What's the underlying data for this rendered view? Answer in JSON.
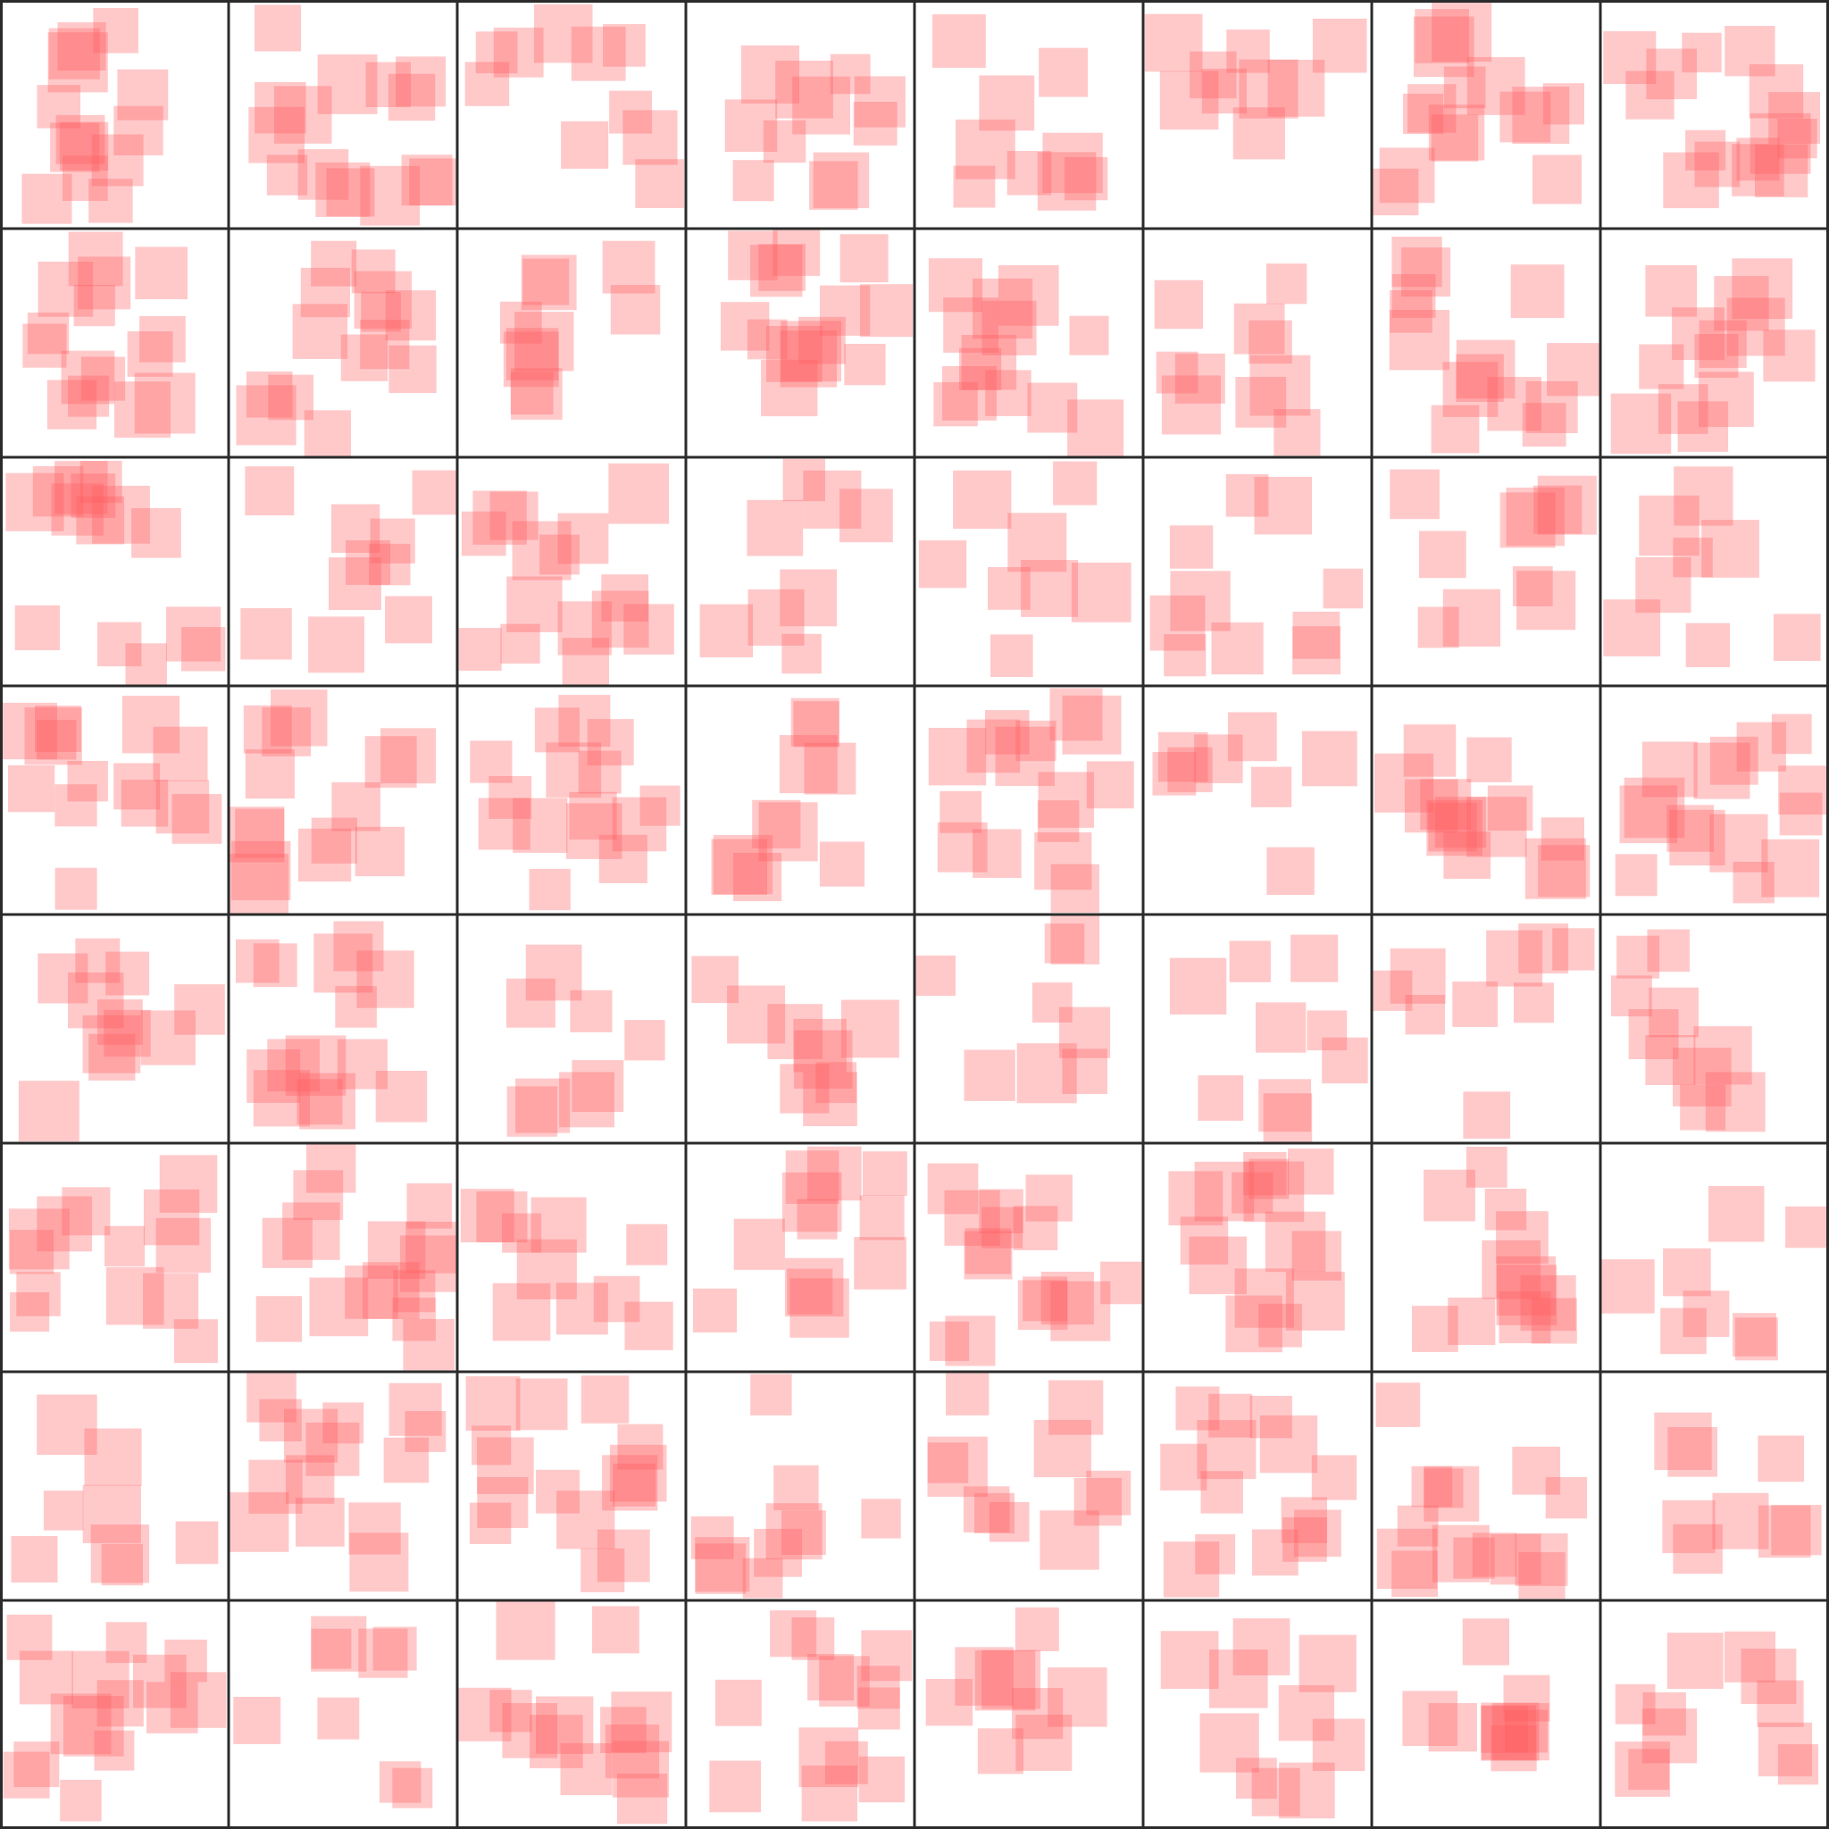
{
  "grid": {
    "rows": 8,
    "cols": 8
  },
  "colors": {
    "background": "#ffffff",
    "square_fill": "#ff5a5f",
    "square_opacity": 0.33,
    "grid_line": "#2b2b2b"
  }
}
